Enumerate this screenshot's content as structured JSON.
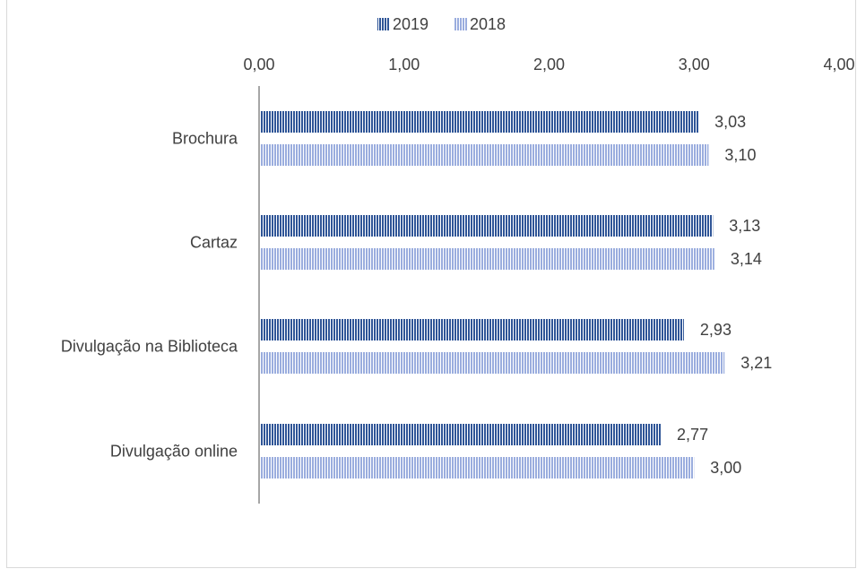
{
  "chart_data": {
    "type": "bar",
    "orientation": "horizontal",
    "title": "",
    "xlabel": "",
    "ylabel": "",
    "categories": [
      "Brochura",
      "Cartaz",
      "Divulgação na Biblioteca",
      "Divulgação online"
    ],
    "series": [
      {
        "name": "2019",
        "values": [
          3.03,
          3.13,
          2.93,
          2.77
        ],
        "labels": [
          "3,03",
          "3,13",
          "2,93",
          "2,77"
        ],
        "color": "#2f5597",
        "pattern": "vertical-hatch"
      },
      {
        "name": "2018",
        "values": [
          3.1,
          3.14,
          3.21,
          3.0
        ],
        "labels": [
          "3,10",
          "3,14",
          "3,21",
          "3,00"
        ],
        "color": "#8fa3d6",
        "pattern": "vertical-hatch"
      }
    ],
    "xlim": [
      0,
      4
    ],
    "xticks": [
      0,
      1,
      2,
      3,
      4
    ],
    "xtick_labels": [
      "0,00",
      "1,00",
      "2,00",
      "3,00",
      "4,00"
    ],
    "x_axis_position": "top",
    "legend_position": "top",
    "grid": false
  }
}
